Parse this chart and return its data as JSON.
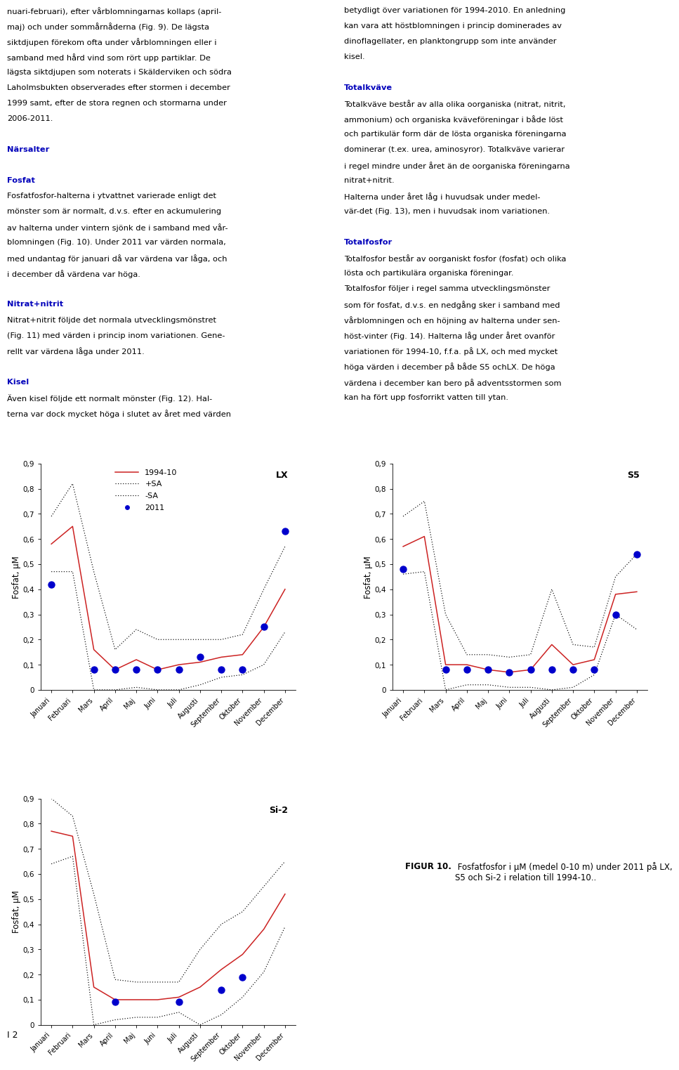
{
  "months": [
    "Januari",
    "Februari",
    "Mars",
    "April",
    "Maj",
    "Juni",
    "Juli",
    "Augusti",
    "September",
    "Oktober",
    "November",
    "December"
  ],
  "LX": {
    "mean": [
      0.58,
      0.65,
      0.16,
      0.08,
      0.12,
      0.08,
      0.1,
      0.11,
      0.13,
      0.14,
      0.25,
      0.4
    ],
    "plus_sa": [
      0.69,
      0.82,
      0.47,
      0.16,
      0.24,
      0.2,
      0.2,
      0.2,
      0.2,
      0.22,
      0.4,
      0.57
    ],
    "minus_sa": [
      0.47,
      0.47,
      0.0,
      0.0,
      0.01,
      0.0,
      0.0,
      0.02,
      0.05,
      0.06,
      0.1,
      0.23
    ],
    "dots": [
      0.42,
      null,
      0.08,
      0.08,
      0.08,
      0.08,
      0.08,
      0.13,
      0.08,
      0.08,
      0.25,
      0.63
    ]
  },
  "S5": {
    "mean": [
      0.57,
      0.61,
      0.1,
      0.1,
      0.08,
      0.07,
      0.08,
      0.18,
      0.1,
      0.12,
      0.38,
      0.39
    ],
    "plus_sa": [
      0.69,
      0.75,
      0.3,
      0.14,
      0.14,
      0.13,
      0.14,
      0.4,
      0.18,
      0.17,
      0.45,
      0.54
    ],
    "minus_sa": [
      0.46,
      0.47,
      0.0,
      0.02,
      0.02,
      0.01,
      0.01,
      0.0,
      0.01,
      0.06,
      0.3,
      0.24
    ],
    "dots": [
      0.48,
      null,
      0.08,
      0.08,
      0.08,
      0.07,
      0.08,
      0.08,
      0.08,
      0.08,
      0.3,
      0.54
    ]
  },
  "Si2": {
    "mean": [
      0.77,
      0.75,
      0.15,
      0.1,
      0.1,
      0.1,
      0.11,
      0.15,
      0.22,
      0.28,
      0.38,
      0.52
    ],
    "plus_sa": [
      0.9,
      0.83,
      0.52,
      0.18,
      0.17,
      0.17,
      0.17,
      0.3,
      0.4,
      0.45,
      0.55,
      0.65
    ],
    "minus_sa": [
      0.64,
      0.67,
      0.0,
      0.02,
      0.03,
      0.03,
      0.05,
      0.0,
      0.04,
      0.11,
      0.21,
      0.39
    ],
    "dots": [
      null,
      null,
      null,
      0.09,
      null,
      null,
      0.09,
      null,
      0.14,
      0.19,
      null,
      null
    ]
  },
  "line_color": "#cc2222",
  "dot_color": "#0000cc",
  "dot_size": 42,
  "ylabel": "Fosfat, μM",
  "figcaption_bold": "FIGUR 10.",
  "figcaption_normal": " Fosfatfosfor i μM (medel 0-10 m) under 2011 på LX,\nS5 och Si-2 i relation till 1994-10..",
  "ylim": [
    0,
    0.9
  ],
  "yticks": [
    0,
    0.1,
    0.2,
    0.3,
    0.4,
    0.5,
    0.6,
    0.7,
    0.8,
    0.9
  ],
  "text_col1": [
    [
      "nuari-februari), efter vårblomningarnas kollaps (april-",
      false
    ],
    [
      "maj) och under sommårnåderna (Fig. 9). De lägsta",
      false
    ],
    [
      "siktdjupen förekom ofta under vårblomningen eller i",
      false
    ],
    [
      "samband med hård vind som rört upp partiklar. De",
      false
    ],
    [
      "lägsta siktdjupen som noterats i Skälderviken och södra",
      false
    ],
    [
      "Laholmsbukten observerades efter stormen i december",
      false
    ],
    [
      "1999 samt, efter de stora regnen och stormarna under",
      false
    ],
    [
      "2006-2011.",
      false
    ],
    [
      "",
      false
    ],
    [
      "Närsalter",
      true
    ],
    [
      "",
      false
    ],
    [
      "Fosfat",
      true
    ],
    [
      "Fosfatfosfor-halterna i ytvattnet varierade enligt det",
      false
    ],
    [
      "mönster som är normalt, d.v.s. efter en ackumulering",
      false
    ],
    [
      "av halterna under vintern sjönk de i samband med vår-",
      false
    ],
    [
      "blomningen (Fig. 10). Under 2011 var värden normala,",
      false
    ],
    [
      "med undantag för januari då var värdena var låga, och",
      false
    ],
    [
      "i december då värdena var höga.",
      false
    ],
    [
      "",
      false
    ],
    [
      "Nitrat+nitrit",
      true
    ],
    [
      "Nitrat+nitrit följde det normala utvecklingsmönstret",
      false
    ],
    [
      "(Fig. 11) med värden i princip inom variationen. Gene-",
      false
    ],
    [
      "rellt var värdena låga under 2011.",
      false
    ],
    [
      "",
      false
    ],
    [
      "Kisel",
      true
    ],
    [
      "Även kisel följde ett normalt mönster (Fig. 12). Hal-",
      false
    ],
    [
      "terna var dock mycket höga i slutet av året med värden",
      false
    ]
  ],
  "text_col2": [
    [
      "betydligt över variationen för 1994-2010. En anledning",
      false
    ],
    [
      "kan vara att höstblomningen i princip dominerades av",
      false
    ],
    [
      "dinoflagellater, en planktongrupp som inte använder",
      false
    ],
    [
      "kisel.",
      false
    ],
    [
      "",
      false
    ],
    [
      "Totalkväve",
      true
    ],
    [
      "Totalkväve består av alla olika oorganiska (nitrat, nitrit,",
      false
    ],
    [
      "ammonium) och organiska kväveföreningar i både löst",
      false
    ],
    [
      "och partikulär form där de lösta organiska föreningarna",
      false
    ],
    [
      "dominerar (t.ex. urea, aminosyror). Totalkväve varierar",
      false
    ],
    [
      "i regel mindre under året än de oorganiska föreningarna",
      false
    ],
    [
      "nitrat+nitrit.",
      false
    ],
    [
      "Halterna under året låg i huvudsak under medel-",
      false
    ],
    [
      "vär-det (Fig. 13), men i huvudsak inom variationen.",
      false
    ],
    [
      "",
      false
    ],
    [
      "Totalfosfor",
      true
    ],
    [
      "Totalfosfor består av oorganiskt fosfor (fosfat) och olika",
      false
    ],
    [
      "lösta och partikulära organiska föreningar.",
      false
    ],
    [
      "Totalfosfor följer i regel samma utvecklingsmönster",
      false
    ],
    [
      "som för fosfat, d.v.s. en nedgång sker i samband med",
      false
    ],
    [
      "vårblomningen och en höjning av halterna under sen-",
      false
    ],
    [
      "höst-vinter (Fig. 14). Halterna låg under året ovanför",
      false
    ],
    [
      "variationen för 1994-10, f.f.a. på LX, och med mycket",
      false
    ],
    [
      "höga värden i december på både S5 ochLX. De höga",
      false
    ],
    [
      "värdena i december kan bero på adventsstormen som",
      false
    ],
    [
      "kan ha fört upp fosforrikt vatten till ytan.",
      false
    ]
  ]
}
